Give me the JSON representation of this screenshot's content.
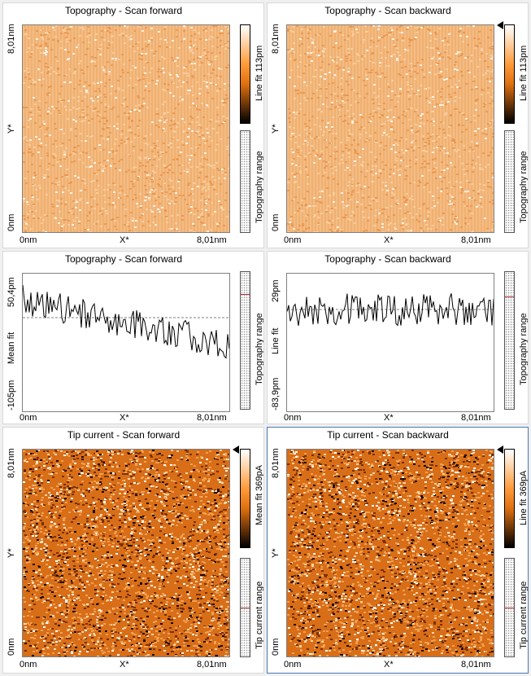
{
  "colors": {
    "afm_light": "#f4c08a",
    "afm_mid": "#e8883a",
    "afm_dark": "#2a1000",
    "selected_border": "#4a78b8",
    "dashed_line": "#808080",
    "range_marker": "#c03030"
  },
  "panels": [
    {
      "title": "Topography - Scan forward",
      "y_top": "8,01nm",
      "y_axis": "Y*",
      "y_bottom": "0nm",
      "x_left": "0nm",
      "x_axis": "X*",
      "x_right": "8,01nm",
      "colorbar_label": "Line fit 113pm",
      "range_label": "Topography range"
    },
    {
      "title": "Topography - Scan backward",
      "y_top": "8,01nm",
      "y_axis": "Y*",
      "y_bottom": "0nm",
      "x_left": "0nm",
      "x_axis": "X*",
      "x_right": "8,01nm",
      "colorbar_label": "Line fit 113pm",
      "range_label": "Topography range"
    },
    {
      "title": "Topography - Scan forward",
      "y_top": "50,4pm",
      "y_axis": "Mean fit",
      "y_bottom": "-105pm",
      "x_left": "0nm",
      "x_axis": "X*",
      "x_right": "8,01nm",
      "range_label": "Topography range"
    },
    {
      "title": "Topography - Scan backward",
      "y_top": "29pm",
      "y_axis": "Line fit",
      "y_bottom": "-83,9pm",
      "x_left": "0nm",
      "x_axis": "X*",
      "x_right": "8,01nm",
      "range_label": "Topography range"
    },
    {
      "title": "Tip current - Scan forward",
      "y_top": "8,01nm",
      "y_axis": "Y*",
      "y_bottom": "0nm",
      "x_left": "0nm",
      "x_axis": "X*",
      "x_right": "8,01nm",
      "colorbar_label": "Mean fit 369pA",
      "range_label": "Tip current range"
    },
    {
      "title": "Tip current - Scan backward",
      "y_top": "8,01nm",
      "y_axis": "Y*",
      "y_bottom": "0nm",
      "x_left": "0nm",
      "x_axis": "X*",
      "x_right": "8,01nm",
      "colorbar_label": "Line fit 369pA",
      "range_label": "Tip current range"
    }
  ],
  "selected_panel": "Tip current - Scan backward"
}
